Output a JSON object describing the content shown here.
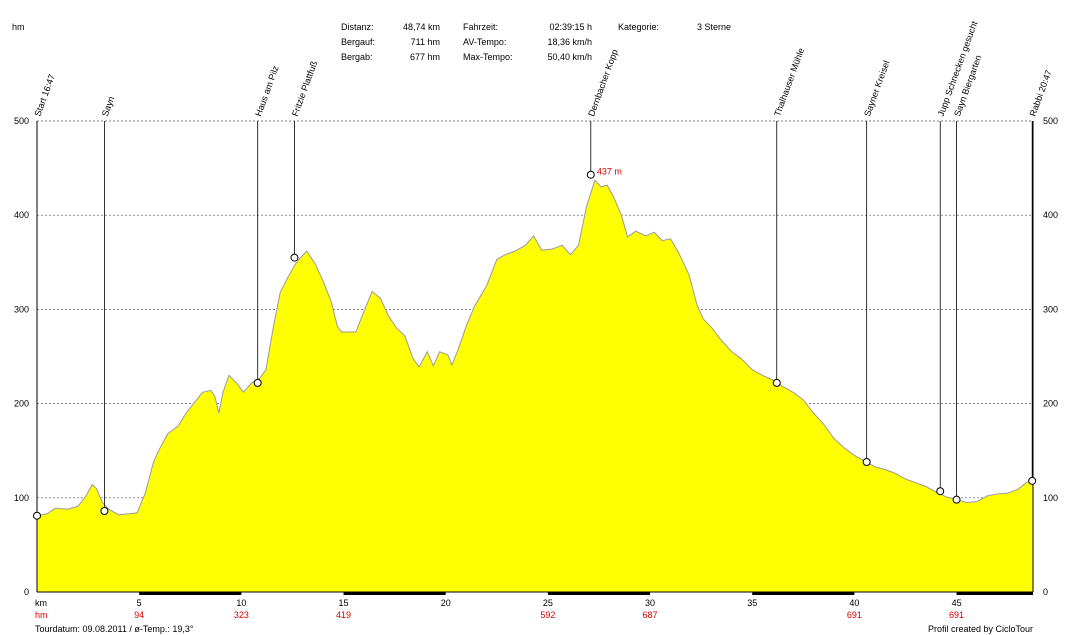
{
  "stats": {
    "distanz_label": "Distanz:",
    "distanz_value": "48,74 km",
    "bergauf_label": "Bergauf:",
    "bergauf_value": "711 hm",
    "bergab_label": "Bergab:",
    "bergab_value": "677 hm",
    "fahrzeit_label": "Fahrzeit:",
    "fahrzeit_value": "02:39:15 h",
    "av_label": "AV-Tempo:",
    "av_value": "18,36 km/h",
    "max_label": "Max-Tempo:",
    "max_value": "50,40 km/h",
    "kategorie_label": "Kategorie:",
    "kategorie_value": "3 Sterne"
  },
  "footer": {
    "date": "Tourdatum: 09.08.2011  /  ø-Temp.: 19,3°",
    "credit": "Profil created by CicloTour"
  },
  "chart_data": {
    "type": "area",
    "title": "",
    "xlabel": "km",
    "ylabel": "hm",
    "xlim": [
      0,
      48.74
    ],
    "ylim": [
      0,
      500
    ],
    "grid": true,
    "fill_color": "#ffff00",
    "line_color": "#9a9a9a",
    "y_ticks": [
      0,
      100,
      200,
      300,
      400,
      500
    ],
    "x_ticks": [
      5,
      10,
      15,
      20,
      25,
      30,
      35,
      40,
      45
    ],
    "cumulative_climb": [
      {
        "x": 5,
        "label": "94"
      },
      {
        "x": 10,
        "label": "323"
      },
      {
        "x": 15,
        "label": "419"
      },
      {
        "x": 25,
        "label": "592"
      },
      {
        "x": 30,
        "label": "687"
      },
      {
        "x": 40,
        "label": "691"
      },
      {
        "x": 45,
        "label": "691"
      }
    ],
    "peak_annotation": {
      "x": 27.2,
      "y": 437,
      "label": "437 m"
    },
    "waypoints": [
      {
        "x": 0.0,
        "y": 81,
        "label": "Start 16:47"
      },
      {
        "x": 3.3,
        "y": 86,
        "label": "Sayn"
      },
      {
        "x": 10.8,
        "y": 222,
        "label": "Haus am Pilz"
      },
      {
        "x": 12.6,
        "y": 355,
        "label": "Fritzie Plattfuß"
      },
      {
        "x": 27.1,
        "y": 443,
        "label": "Dernbacher Kopp"
      },
      {
        "x": 36.2,
        "y": 222,
        "label": "Thalhauser Mühle"
      },
      {
        "x": 40.6,
        "y": 138,
        "label": "Sayner Kreisel"
      },
      {
        "x": 44.2,
        "y": 107,
        "label": "Jupp Schnecken gesucht"
      },
      {
        "x": 45.0,
        "y": 98,
        "label": "Sayn Biergarten"
      },
      {
        "x": 48.7,
        "y": 118,
        "label": "Rabbi 20:47"
      }
    ],
    "profile": [
      [
        0.0,
        81
      ],
      [
        0.5,
        83
      ],
      [
        0.9,
        89
      ],
      [
        1.5,
        88
      ],
      [
        2.0,
        91
      ],
      [
        2.4,
        102
      ],
      [
        2.7,
        114
      ],
      [
        2.9,
        110
      ],
      [
        3.2,
        95
      ],
      [
        3.5,
        88
      ],
      [
        4.0,
        82
      ],
      [
        4.5,
        83
      ],
      [
        4.9,
        84
      ],
      [
        5.3,
        105
      ],
      [
        5.7,
        138
      ],
      [
        6.0,
        152
      ],
      [
        6.4,
        168
      ],
      [
        6.9,
        176
      ],
      [
        7.3,
        190
      ],
      [
        7.7,
        201
      ],
      [
        8.1,
        212
      ],
      [
        8.5,
        214
      ],
      [
        8.7,
        208
      ],
      [
        8.9,
        190
      ],
      [
        9.1,
        212
      ],
      [
        9.4,
        230
      ],
      [
        9.8,
        221
      ],
      [
        10.1,
        212
      ],
      [
        10.5,
        222
      ],
      [
        10.9,
        227
      ],
      [
        11.2,
        236
      ],
      [
        11.6,
        285
      ],
      [
        11.9,
        318
      ],
      [
        12.3,
        335
      ],
      [
        12.7,
        350
      ],
      [
        13.2,
        362
      ],
      [
        13.6,
        349
      ],
      [
        14.0,
        330
      ],
      [
        14.4,
        308
      ],
      [
        14.7,
        282
      ],
      [
        14.9,
        276
      ],
      [
        15.6,
        276
      ],
      [
        16.0,
        298
      ],
      [
        16.4,
        319
      ],
      [
        16.8,
        312
      ],
      [
        17.2,
        293
      ],
      [
        17.6,
        280
      ],
      [
        18.0,
        272
      ],
      [
        18.4,
        248
      ],
      [
        18.7,
        239
      ],
      [
        19.1,
        255
      ],
      [
        19.4,
        240
      ],
      [
        19.7,
        255
      ],
      [
        20.1,
        252
      ],
      [
        20.3,
        241
      ],
      [
        20.6,
        257
      ],
      [
        21.0,
        282
      ],
      [
        21.4,
        303
      ],
      [
        22.0,
        325
      ],
      [
        22.5,
        353
      ],
      [
        22.9,
        358
      ],
      [
        23.4,
        362
      ],
      [
        23.9,
        368
      ],
      [
        24.3,
        378
      ],
      [
        24.7,
        363
      ],
      [
        25.2,
        364
      ],
      [
        25.7,
        368
      ],
      [
        26.1,
        358
      ],
      [
        26.5,
        368
      ],
      [
        26.9,
        410
      ],
      [
        27.3,
        437
      ],
      [
        27.6,
        430
      ],
      [
        27.9,
        432
      ],
      [
        28.2,
        420
      ],
      [
        28.6,
        400
      ],
      [
        28.9,
        377
      ],
      [
        29.3,
        383
      ],
      [
        29.8,
        378
      ],
      [
        30.2,
        382
      ],
      [
        30.6,
        373
      ],
      [
        31.0,
        375
      ],
      [
        31.4,
        360
      ],
      [
        31.9,
        337
      ],
      [
        32.3,
        305
      ],
      [
        32.6,
        290
      ],
      [
        33.0,
        281
      ],
      [
        33.5,
        267
      ],
      [
        34.0,
        255
      ],
      [
        34.5,
        247
      ],
      [
        35.0,
        236
      ],
      [
        35.5,
        230
      ],
      [
        36.0,
        225
      ],
      [
        36.5,
        218
      ],
      [
        37.0,
        212
      ],
      [
        37.5,
        204
      ],
      [
        38.0,
        190
      ],
      [
        38.5,
        178
      ],
      [
        39.0,
        163
      ],
      [
        39.5,
        153
      ],
      [
        40.0,
        145
      ],
      [
        40.5,
        139
      ],
      [
        41.0,
        133
      ],
      [
        41.5,
        130
      ],
      [
        42.0,
        126
      ],
      [
        42.5,
        120
      ],
      [
        43.0,
        116
      ],
      [
        43.5,
        112
      ],
      [
        44.0,
        106
      ],
      [
        44.5,
        101
      ],
      [
        45.0,
        98
      ],
      [
        45.5,
        95
      ],
      [
        46.0,
        96
      ],
      [
        46.5,
        102
      ],
      [
        47.0,
        104
      ],
      [
        47.5,
        105
      ],
      [
        48.0,
        109
      ],
      [
        48.4,
        116
      ],
      [
        48.74,
        118
      ]
    ]
  }
}
